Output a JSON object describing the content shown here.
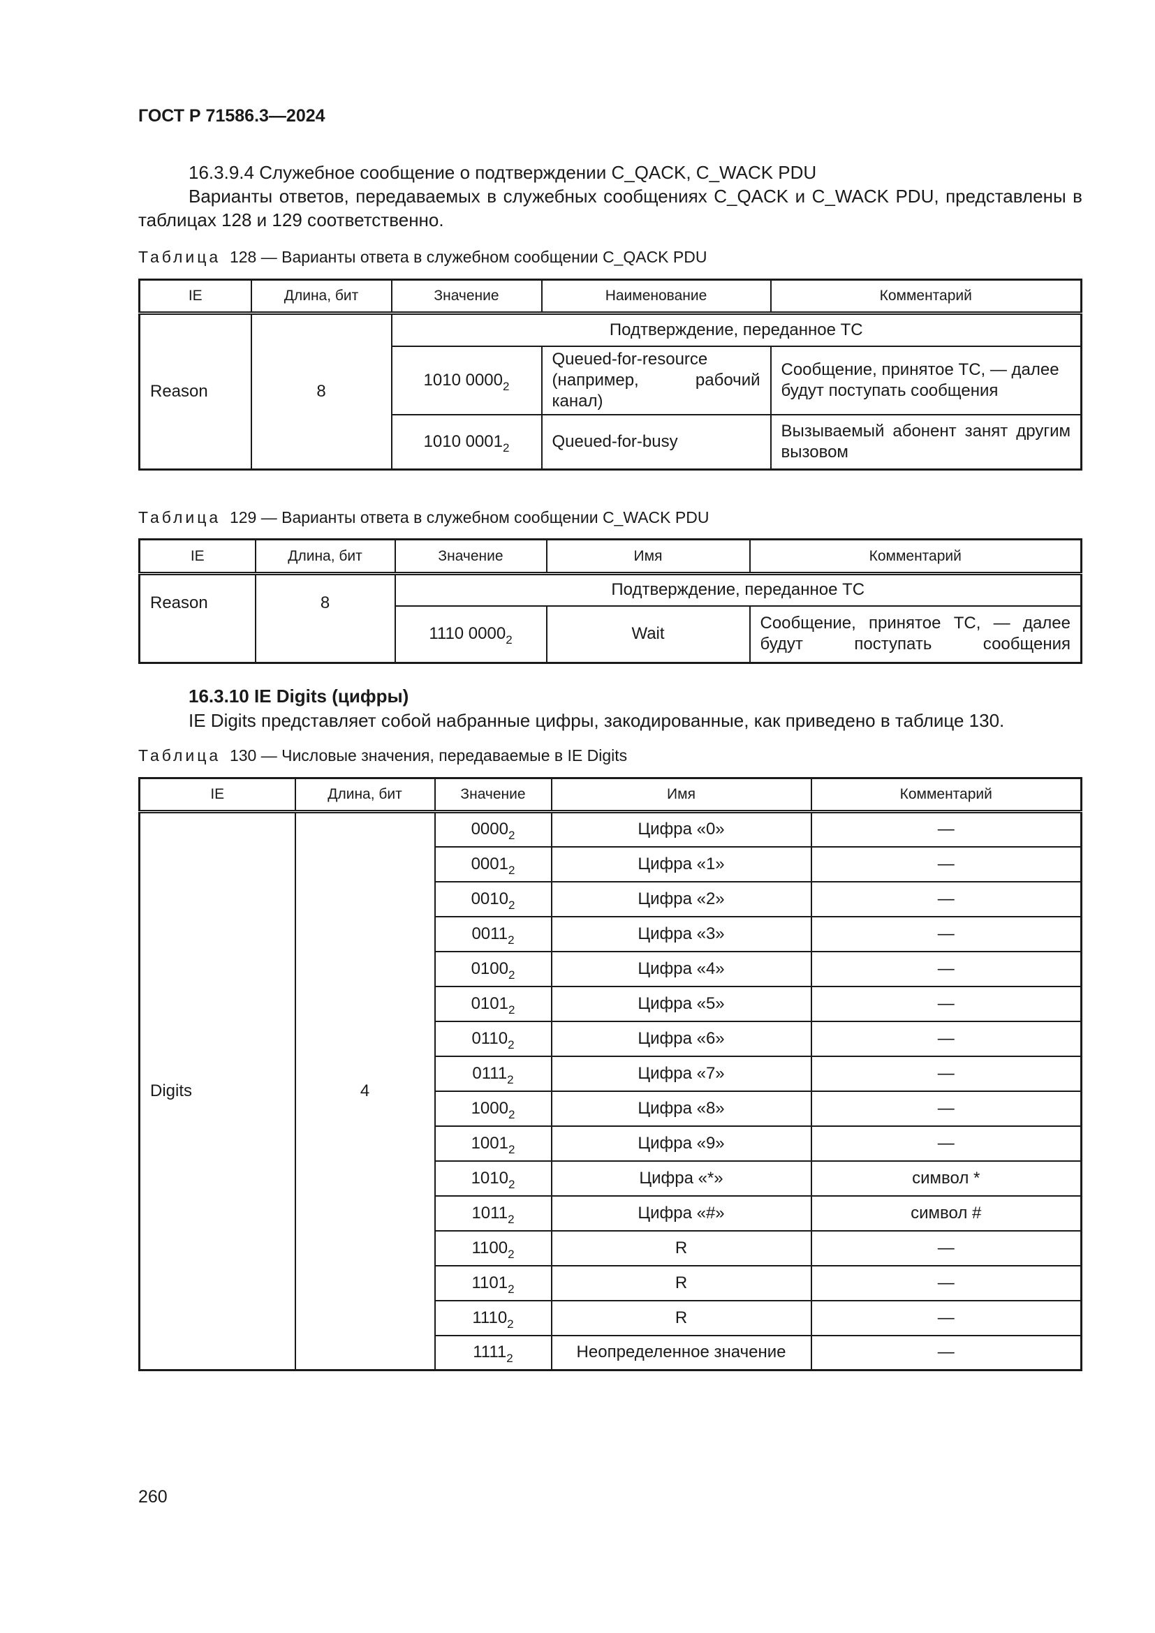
{
  "header": {
    "doc_id": "ГОСТ Р 71586.3—2024"
  },
  "section_1": {
    "heading": "16.3.9.4 Служебное сообщение о подтверждении C_QACK, C_WACK PDU",
    "paragraph": "Варианты ответов, передаваемых в служебных сообщениях C_QACK и C_WACK PDU, представлены в таблицах 128 и 129 соответственно."
  },
  "table128": {
    "caption_label": "Таблица",
    "caption_text": "128 — Варианты ответа в служебном сообщении C_QACK PDU",
    "headers": [
      "IE",
      "Длина, бит",
      "Значение",
      "Наименование",
      "Комментарий"
    ],
    "ie": "Reason",
    "length": "8",
    "group": "Подтверждение, переданное ТС",
    "rows": [
      {
        "value": "1010 0000",
        "sub": "2",
        "name": "Queued-for-resource (например, рабочий канал)",
        "comment": "Сообщение, принятое ТС, — далее будут поступать сообщения"
      },
      {
        "value": "1010 0001",
        "sub": "2",
        "name": "Queued-for-busy",
        "comment": "Вызываемый абонент занят другим вызовом"
      }
    ]
  },
  "table129": {
    "caption_label": "Таблица",
    "caption_text": "129 — Варианты ответа в служебном сообщении C_WACK PDU",
    "headers": [
      "IE",
      "Длина, бит",
      "Значение",
      "Имя",
      "Комментарий"
    ],
    "ie": "Reason",
    "length": "8",
    "group": "Подтверждение, переданное ТС",
    "rows": [
      {
        "value": "1110 0000",
        "sub": "2",
        "name": "Wait",
        "comment": "Сообщение, принятое ТС, — далее будут поступать сообщения"
      }
    ]
  },
  "section_2": {
    "heading": "16.3.10 IE Digits (цифры)",
    "paragraph": "IE Digits представляет собой набранные цифры, закодированные, как приведено в таблице 130."
  },
  "table130": {
    "caption_label": "Таблица",
    "caption_text": "130 — Числовые значения, передаваемые в IE Digits",
    "headers": [
      "IE",
      "Длина, бит",
      "Значение",
      "Имя",
      "Комментарий"
    ],
    "ie": "Digits",
    "length": "4",
    "rows": [
      {
        "value": "0000",
        "sub": "2",
        "name": "Цифра «0»",
        "comment": "—"
      },
      {
        "value": "0001",
        "sub": "2",
        "name": "Цифра «1»",
        "comment": "—"
      },
      {
        "value": "0010",
        "sub": "2",
        "name": "Цифра «2»",
        "comment": "—"
      },
      {
        "value": "0011",
        "sub": "2",
        "name": "Цифра «3»",
        "comment": "—"
      },
      {
        "value": "0100",
        "sub": "2",
        "name": "Цифра «4»",
        "comment": "—"
      },
      {
        "value": "0101",
        "sub": "2",
        "name": "Цифра «5»",
        "comment": "—"
      },
      {
        "value": "0110",
        "sub": "2",
        "name": "Цифра «6»",
        "comment": "—"
      },
      {
        "value": "0111",
        "sub": "2",
        "name": "Цифра «7»",
        "comment": "—"
      },
      {
        "value": "1000",
        "sub": "2",
        "name": "Цифра «8»",
        "comment": "—"
      },
      {
        "value": "1001",
        "sub": "2",
        "name": "Цифра «9»",
        "comment": "—"
      },
      {
        "value": "1010",
        "sub": "2",
        "name": "Цифра «*»",
        "comment": "символ *"
      },
      {
        "value": "1011",
        "sub": "2",
        "name": "Цифра «#»",
        "comment": "символ #"
      },
      {
        "value": "1100",
        "sub": "2",
        "name": "R",
        "comment": "—"
      },
      {
        "value": "1101",
        "sub": "2",
        "name": "R",
        "comment": "—"
      },
      {
        "value": "1110",
        "sub": "2",
        "name": "R",
        "comment": "—"
      },
      {
        "value": "1111",
        "sub": "2",
        "name": "Неопределенное значение",
        "comment": "—"
      }
    ]
  },
  "footer": {
    "page_number": "260"
  }
}
